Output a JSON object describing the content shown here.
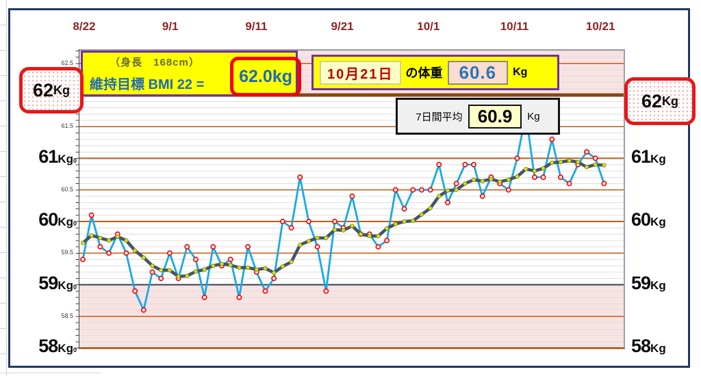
{
  "chart_data": {
    "type": "line",
    "title": "",
    "x_tick_labels": [
      "8/22",
      "9/1",
      "9/11",
      "9/21",
      "10/1",
      "10/11",
      "10/21"
    ],
    "n_points": 61,
    "x_range_days": [
      "8/22",
      "10/21"
    ],
    "ylim": [
      58.0,
      62.7
    ],
    "y_unit": "Kg",
    "y_minor_step": 0.1,
    "y_major_gridlines": [
      62.5,
      61.5,
      61.0,
      60.5,
      60.0,
      59.5,
      58.5
    ],
    "target_line_kg": 62.0,
    "lower_band_top_kg": 59.0,
    "band_color": "#f8e3e2",
    "grid_on": true,
    "legend_position": "none",
    "series": [
      {
        "name": "体重",
        "color": "#18a8e8",
        "marker": "red-open-circle",
        "values": [
          59.4,
          60.1,
          59.6,
          59.5,
          59.8,
          59.5,
          58.9,
          58.6,
          59.2,
          59.1,
          59.5,
          59.1,
          59.6,
          59.4,
          58.8,
          59.6,
          59.3,
          59.4,
          58.8,
          59.6,
          59.2,
          58.9,
          59.1,
          60.0,
          59.9,
          60.7,
          60.0,
          59.6,
          58.9,
          60.0,
          59.9,
          60.4,
          59.8,
          59.8,
          59.6,
          59.7,
          60.5,
          60.2,
          60.5,
          60.5,
          60.5,
          60.9,
          60.3,
          60.6,
          60.9,
          60.9,
          60.4,
          60.7,
          60.6,
          60.5,
          61.0,
          61.7,
          60.7,
          60.7,
          61.3,
          60.7,
          60.6,
          60.9,
          61.1,
          61.0,
          60.6
        ]
      },
      {
        "name": "7日間平均",
        "color": "#44546a",
        "marker": "yellow-green-dot",
        "values": [
          59.66,
          59.78,
          59.74,
          59.7,
          59.76,
          59.7,
          59.54,
          59.43,
          59.3,
          59.23,
          59.23,
          59.13,
          59.14,
          59.21,
          59.24,
          59.3,
          59.33,
          59.31,
          59.27,
          59.27,
          59.24,
          59.26,
          59.19,
          59.29,
          59.36,
          59.63,
          59.69,
          59.74,
          59.74,
          59.87,
          59.86,
          59.93,
          59.8,
          59.77,
          59.77,
          59.89,
          59.96,
          60.0,
          60.01,
          60.11,
          60.21,
          60.4,
          60.49,
          60.5,
          60.6,
          60.66,
          60.64,
          60.67,
          60.63,
          60.66,
          60.71,
          60.83,
          60.8,
          60.84,
          60.93,
          60.94,
          60.96,
          60.94,
          60.86,
          60.9,
          60.89
        ]
      }
    ]
  },
  "axis": {
    "left_big_labels": [
      {
        "num": "61",
        "unit": "Kg",
        "tiny": "0",
        "kg": 61.0
      },
      {
        "num": "60",
        "unit": "Kg",
        "tiny": "0",
        "kg": 60.0
      },
      {
        "num": "59",
        "unit": "Kg",
        "tiny": "0",
        "kg": 59.0
      },
      {
        "num": "58",
        "unit": "Kg",
        "tiny": "0",
        "kg": 58.0
      }
    ],
    "right_big_labels": [
      {
        "num": "61",
        "unit": "Kg",
        "kg": 61.0
      },
      {
        "num": "60",
        "unit": "Kg",
        "kg": 60.0
      },
      {
        "num": "59",
        "unit": "Kg",
        "kg": 59.0
      },
      {
        "num": "58",
        "unit": "Kg",
        "kg": 58.0
      }
    ],
    "small_labels": [
      {
        "text": "62.5",
        "kg": 62.5
      },
      {
        "text": "61.5",
        "kg": 61.5
      },
      {
        "text": "60.5",
        "kg": 60.5
      },
      {
        "text": "59.5",
        "kg": 59.5
      },
      {
        "text": "58.5",
        "kg": 58.5
      }
    ]
  },
  "badges": {
    "left": {
      "num": "62",
      "unit": "Kg"
    },
    "right": {
      "num": "62",
      "unit": "Kg"
    }
  },
  "boxes": {
    "bmi": {
      "height_note": "（身長　168cm）",
      "goal_prefix": "維持目標 BMI 22 =",
      "goal_value": "62.0kg"
    },
    "today": {
      "date": "10月21日",
      "label": "の体重",
      "value": "60.6",
      "unit": "Kg"
    },
    "week_avg": {
      "label": "7日間平均",
      "value": "60.9",
      "unit": "Kg"
    }
  },
  "colors": {
    "panel_border": "#1f3864",
    "date_label": "#8e2323",
    "box_fill": "#ffff00",
    "box_border": "#7030a0",
    "target_ring": "#f50000",
    "goal_text": "#1f6bb5",
    "today_date_text": "#c00000",
    "today_value_text": "#2e74b5",
    "daily_line": "#18a8e8",
    "daily_marker": "#ff0000",
    "avg_line": "#44546a",
    "avg_marker": "#d9e021",
    "major_grid": "#c55a11",
    "minor_grid": "#dddddd",
    "target_line": "#8b4513",
    "lower_band_line": "#333f4f",
    "pink_band": "#f8e3e2"
  }
}
